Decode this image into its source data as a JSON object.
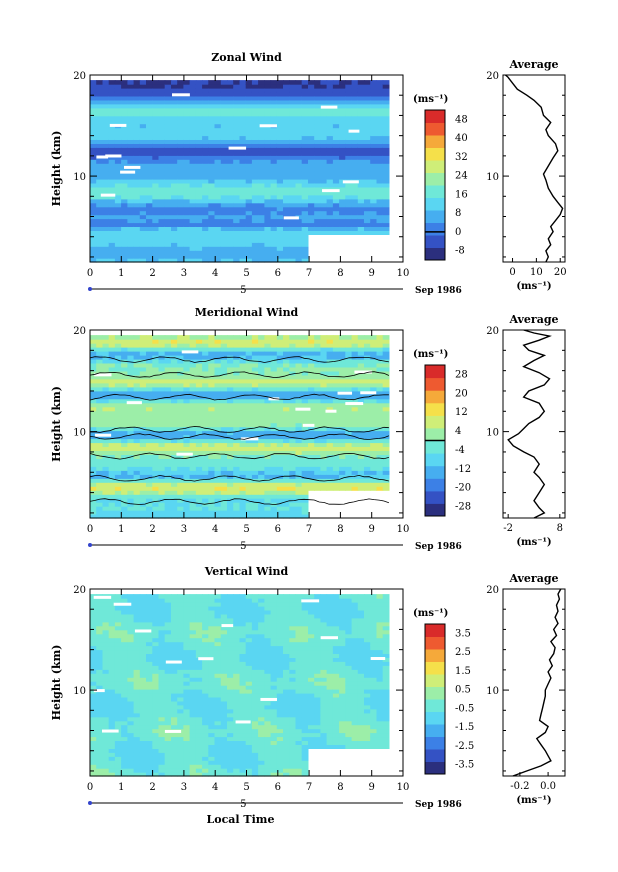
{
  "chart_data": [
    {
      "type": "heatmap",
      "title": "Zonal Wind",
      "ylabel": "Height (km)",
      "xlim": [
        0,
        10
      ],
      "ylim": [
        1.5,
        20
      ],
      "x_ticks": [
        "0",
        "1",
        "2",
        "3",
        "4",
        "5",
        "6",
        "7",
        "8",
        "9",
        "10"
      ],
      "y_ticks": [
        "10",
        "20"
      ],
      "date_marker": "5",
      "date_label": "Sep 1986",
      "colorbar": {
        "unit": "(ms⁻¹)",
        "ticks": [
          "48",
          "40",
          "32",
          "24",
          "16",
          "8",
          "0",
          "-8"
        ],
        "range": [
          -12,
          52
        ],
        "zero_line": 0
      },
      "average_profile": {
        "title": "Average",
        "unit": "(ms⁻¹)",
        "x_ticks": [
          "0",
          "10",
          "20"
        ],
        "xlim": [
          -4,
          22
        ],
        "y_ticks": [
          "10",
          "20"
        ],
        "points": [
          [
            14,
            1.5
          ],
          [
            15,
            2
          ],
          [
            14,
            2.6
          ],
          [
            16,
            3.2
          ],
          [
            15,
            3.8
          ],
          [
            17,
            4.5
          ],
          [
            16,
            5
          ],
          [
            18,
            5.6
          ],
          [
            20,
            6.2
          ],
          [
            21,
            6.8
          ],
          [
            19,
            7.4
          ],
          [
            17,
            8
          ],
          [
            15,
            8.8
          ],
          [
            14,
            9.6
          ],
          [
            13,
            10.2
          ],
          [
            15,
            11
          ],
          [
            17,
            11.8
          ],
          [
            19,
            12.5
          ],
          [
            18,
            13.2
          ],
          [
            15,
            14
          ],
          [
            14,
            14.6
          ],
          [
            16,
            15.3
          ],
          [
            13,
            16
          ],
          [
            12,
            16.8
          ],
          [
            9,
            17.5
          ],
          [
            6,
            18
          ],
          [
            2,
            18.6
          ],
          [
            0,
            19.2
          ],
          [
            -2,
            19.8
          ],
          [
            -3,
            20
          ]
        ]
      }
    },
    {
      "type": "heatmap",
      "title": "Meridional Wind",
      "ylabel": "Height (km)",
      "xlim": [
        0,
        10
      ],
      "ylim": [
        1.5,
        20
      ],
      "x_ticks": [
        "0",
        "1",
        "2",
        "3",
        "4",
        "5",
        "6",
        "7",
        "8",
        "9",
        "10"
      ],
      "y_ticks": [
        "10",
        "20"
      ],
      "date_marker": "5",
      "date_label": "Sep 1986",
      "colorbar": {
        "unit": "(ms⁻¹)",
        "ticks": [
          "28",
          "20",
          "12",
          "4",
          "-4",
          "-12",
          "-20",
          "-28"
        ],
        "range": [
          -32,
          32
        ],
        "zero_line": 0
      },
      "average_profile": {
        "title": "Average",
        "unit": "(ms⁻¹)",
        "x_ticks": [
          "-2",
          "8"
        ],
        "xlim": [
          -3,
          9
        ],
        "y_ticks": [
          "10",
          "20"
        ],
        "points": [
          [
            3,
            1.5
          ],
          [
            5,
            2
          ],
          [
            4,
            2.5
          ],
          [
            3,
            3.2
          ],
          [
            4,
            4
          ],
          [
            5,
            4.8
          ],
          [
            4,
            5.5
          ],
          [
            3,
            6
          ],
          [
            4,
            6.8
          ],
          [
            3,
            7.5
          ],
          [
            1,
            8
          ],
          [
            -1,
            8.6
          ],
          [
            -2,
            9.2
          ],
          [
            0,
            9.8
          ],
          [
            1,
            10.3
          ],
          [
            2,
            10.8
          ],
          [
            4,
            11.4
          ],
          [
            5,
            12
          ],
          [
            4,
            12.8
          ],
          [
            1,
            13.4
          ],
          [
            2,
            14
          ],
          [
            5,
            14.6
          ],
          [
            6,
            15.2
          ],
          [
            4,
            15.8
          ],
          [
            1,
            16.4
          ],
          [
            3,
            17
          ],
          [
            5,
            17.5
          ],
          [
            2,
            18
          ],
          [
            1,
            18.5
          ],
          [
            4,
            19
          ],
          [
            6,
            19.4
          ],
          [
            3,
            19.7
          ],
          [
            1,
            20
          ]
        ]
      }
    },
    {
      "type": "heatmap",
      "title": "Vertical Wind",
      "ylabel": "Height (km)",
      "xlabel": "Local Time",
      "xlim": [
        0,
        10
      ],
      "ylim": [
        1.5,
        20
      ],
      "x_ticks": [
        "0",
        "1",
        "2",
        "3",
        "4",
        "5",
        "6",
        "7",
        "8",
        "9",
        "10"
      ],
      "y_ticks": [
        "10",
        "20"
      ],
      "date_marker": "5",
      "date_label": "Sep 1986",
      "colorbar": {
        "unit": "(ms⁻¹)",
        "ticks": [
          "3.5",
          "2.5",
          "1.5",
          "0.5",
          "-0.5",
          "-1.5",
          "-2.5",
          "-3.5"
        ],
        "range": [
          -4,
          4
        ],
        "zero_line": null
      },
      "average_profile": {
        "title": "Average",
        "unit": "(ms⁻¹)",
        "x_ticks": [
          "-0.2",
          "0.0"
        ],
        "xlim": [
          -0.32,
          0.12
        ],
        "y_ticks": [
          "10",
          "20"
        ],
        "points": [
          [
            -0.25,
            1.5
          ],
          [
            -0.15,
            2
          ],
          [
            -0.05,
            2.5
          ],
          [
            0.02,
            3
          ],
          [
            0.0,
            3.5
          ],
          [
            -0.02,
            4
          ],
          [
            -0.05,
            4.6
          ],
          [
            -0.08,
            5.2
          ],
          [
            -0.02,
            5.8
          ],
          [
            0.0,
            6.4
          ],
          [
            -0.06,
            7
          ],
          [
            -0.05,
            7.6
          ],
          [
            -0.04,
            8.2
          ],
          [
            -0.03,
            8.8
          ],
          [
            -0.02,
            9.4
          ],
          [
            -0.02,
            10
          ],
          [
            0.0,
            10.6
          ],
          [
            0.02,
            11.2
          ],
          [
            0.0,
            11.8
          ],
          [
            0.03,
            12.4
          ],
          [
            0.01,
            13
          ],
          [
            0.04,
            13.6
          ],
          [
            0.05,
            14.2
          ],
          [
            0.02,
            14.8
          ],
          [
            0.06,
            15.4
          ],
          [
            0.04,
            16
          ],
          [
            0.07,
            16.6
          ],
          [
            0.05,
            17.2
          ],
          [
            0.07,
            17.8
          ],
          [
            0.06,
            18.4
          ],
          [
            0.08,
            19
          ],
          [
            0.07,
            19.5
          ],
          [
            0.09,
            20
          ]
        ]
      }
    }
  ]
}
